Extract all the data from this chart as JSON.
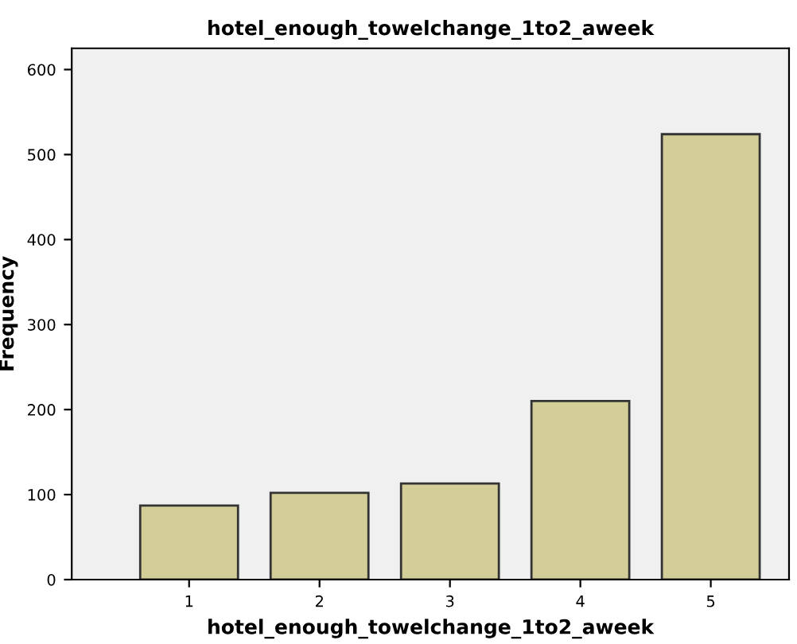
{
  "chart_data": {
    "type": "bar",
    "title": "hotel_enough_towelchange_1to2_aweek",
    "xlabel": "hotel_enough_towelchange_1to2_aweek",
    "ylabel": "Frequency",
    "categories": [
      "1",
      "2",
      "3",
      "4",
      "5"
    ],
    "values": [
      87,
      102,
      113,
      210,
      524
    ],
    "color": "#d3ce97",
    "ylim": [
      0,
      625
    ],
    "yticks": [
      0,
      100,
      200,
      300,
      400,
      500,
      600
    ],
    "grid": false,
    "legend": false
  }
}
